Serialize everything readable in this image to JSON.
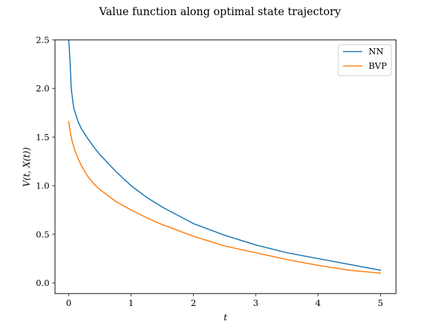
{
  "chart_data": {
    "type": "line",
    "title": "Value function along optimal state trajectory",
    "xlabel": "t",
    "ylabel": "V(t, X(t))",
    "xlim": [
      -0.22,
      5.25
    ],
    "ylim": [
      -0.11,
      2.5
    ],
    "xticks": [
      0,
      1,
      2,
      3,
      4,
      5
    ],
    "yticks": [
      0.0,
      0.5,
      1.0,
      1.5,
      2.0,
      2.5
    ],
    "xtick_labels": [
      "0",
      "1",
      "2",
      "3",
      "4",
      "5"
    ],
    "ytick_labels": [
      "0.0",
      "0.5",
      "1.0",
      "1.5",
      "2.0",
      "2.5"
    ],
    "grid": false,
    "legend_position": "top-right",
    "series": [
      {
        "name": "NN",
        "color": "#1f77b4",
        "x": [
          0.0,
          0.02,
          0.04,
          0.06,
          0.08,
          0.1,
          0.15,
          0.2,
          0.3,
          0.4,
          0.5,
          0.75,
          1.0,
          1.25,
          1.5,
          2.0,
          2.5,
          3.0,
          3.5,
          4.0,
          4.5,
          5.0
        ],
        "y": [
          2.5,
          2.3,
          2.0,
          1.9,
          1.8,
          1.76,
          1.66,
          1.59,
          1.49,
          1.4,
          1.32,
          1.15,
          1.0,
          0.88,
          0.78,
          0.61,
          0.49,
          0.39,
          0.31,
          0.25,
          0.19,
          0.13
        ]
      },
      {
        "name": "BVP",
        "color": "#ff7f0e",
        "x": [
          0.0,
          0.02,
          0.05,
          0.1,
          0.15,
          0.2,
          0.3,
          0.4,
          0.5,
          0.75,
          1.0,
          1.25,
          1.5,
          2.0,
          2.5,
          3.0,
          3.5,
          4.0,
          4.5,
          5.0
        ],
        "y": [
          1.66,
          1.57,
          1.47,
          1.36,
          1.28,
          1.21,
          1.1,
          1.02,
          0.96,
          0.84,
          0.75,
          0.67,
          0.6,
          0.48,
          0.38,
          0.31,
          0.24,
          0.18,
          0.13,
          0.1
        ]
      }
    ]
  }
}
